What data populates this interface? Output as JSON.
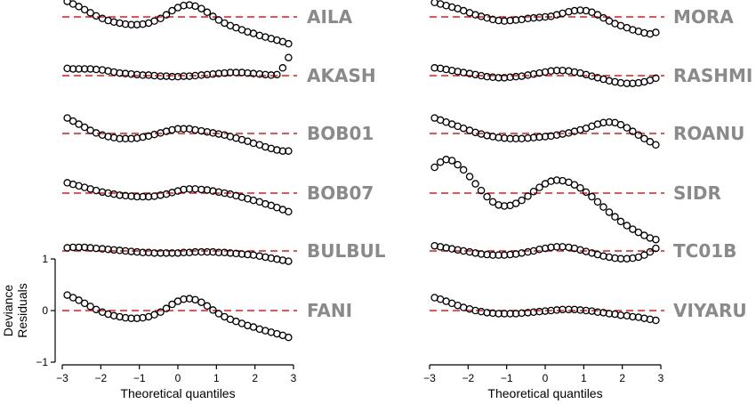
{
  "chart_data": {
    "type": "scatter",
    "description_of_layout": "two columns of stacked Q-Q style residual panels",
    "xlabel": "Theoretical quantiles",
    "ylabel": "Deviance\nResiduals",
    "ylabel_lines": [
      "Deviance",
      "Residuals"
    ],
    "xlim": [
      -3,
      3
    ],
    "xticks": [
      -3,
      -2,
      -1,
      0,
      1,
      2,
      3
    ],
    "xtick_labels": [
      "−3",
      "−2",
      "−1",
      "0",
      "1",
      "2",
      "3"
    ],
    "ylim": [
      -1,
      1
    ],
    "yticks": [
      1,
      0,
      -1
    ],
    "ytick_labels": [
      "1",
      "0",
      "−1"
    ],
    "reference_line_color": "#e31a1c",
    "marker": "open circle",
    "label_color": "#8a8a8a",
    "x": [
      -2.87,
      -2.72,
      -2.57,
      -2.42,
      -2.27,
      -2.12,
      -1.96,
      -1.81,
      -1.66,
      -1.51,
      -1.36,
      -1.21,
      -1.06,
      -0.91,
      -0.76,
      -0.61,
      -0.45,
      -0.3,
      -0.15,
      0.0,
      0.15,
      0.3,
      0.45,
      0.61,
      0.76,
      0.91,
      1.06,
      1.21,
      1.36,
      1.51,
      1.66,
      1.81,
      1.96,
      2.12,
      2.27,
      2.42,
      2.57,
      2.72,
      2.87
    ],
    "panels": [
      {
        "name": "AILA",
        "column": 0,
        "row": 0,
        "values": [
          0.3,
          0.25,
          0.2,
          0.14,
          0.08,
          0.02,
          -0.03,
          -0.07,
          -0.1,
          -0.12,
          -0.14,
          -0.15,
          -0.15,
          -0.14,
          -0.12,
          -0.08,
          -0.03,
          0.04,
          0.12,
          0.18,
          0.22,
          0.23,
          0.21,
          0.16,
          0.09,
          0.01,
          -0.06,
          -0.12,
          -0.17,
          -0.21,
          -0.25,
          -0.29,
          -0.32,
          -0.36,
          -0.39,
          -0.42,
          -0.45,
          -0.48,
          -0.52
        ]
      },
      {
        "name": "AKASH",
        "column": 0,
        "row": 1,
        "values": [
          0.14,
          0.13,
          0.13,
          0.13,
          0.13,
          0.12,
          0.11,
          0.09,
          0.07,
          0.05,
          0.04,
          0.03,
          0.02,
          0.01,
          0.01,
          0.0,
          -0.01,
          -0.01,
          -0.02,
          -0.02,
          -0.01,
          -0.01,
          0.0,
          0.01,
          0.02,
          0.03,
          0.04,
          0.05,
          0.06,
          0.06,
          0.06,
          0.05,
          0.04,
          0.03,
          0.02,
          0.01,
          0.02,
          0.15,
          0.35
        ]
      },
      {
        "name": "BOB01",
        "column": 0,
        "row": 2,
        "values": [
          0.3,
          0.24,
          0.18,
          0.12,
          0.06,
          0.01,
          -0.03,
          -0.06,
          -0.08,
          -0.1,
          -0.1,
          -0.1,
          -0.09,
          -0.07,
          -0.05,
          -0.02,
          0.01,
          0.04,
          0.07,
          0.09,
          0.09,
          0.09,
          0.07,
          0.05,
          0.03,
          0.01,
          -0.01,
          -0.03,
          -0.06,
          -0.09,
          -0.12,
          -0.15,
          -0.19,
          -0.22,
          -0.26,
          -0.29,
          -0.32,
          -0.34,
          -0.34
        ]
      },
      {
        "name": "BOB07",
        "column": 0,
        "row": 3,
        "values": [
          0.2,
          0.17,
          0.14,
          0.11,
          0.08,
          0.05,
          0.02,
          0.0,
          -0.02,
          -0.04,
          -0.05,
          -0.06,
          -0.07,
          -0.07,
          -0.07,
          -0.06,
          -0.04,
          -0.02,
          0.01,
          0.04,
          0.07,
          0.08,
          0.08,
          0.07,
          0.06,
          0.04,
          0.02,
          0.0,
          -0.02,
          -0.05,
          -0.08,
          -0.11,
          -0.14,
          -0.17,
          -0.21,
          -0.24,
          -0.28,
          -0.32,
          -0.36
        ]
      },
      {
        "name": "BULBUL",
        "column": 0,
        "row": 4,
        "values": [
          0.06,
          0.07,
          0.07,
          0.07,
          0.06,
          0.05,
          0.04,
          0.03,
          0.02,
          0.01,
          0.0,
          -0.01,
          -0.02,
          -0.03,
          -0.03,
          -0.04,
          -0.04,
          -0.04,
          -0.04,
          -0.04,
          -0.03,
          -0.03,
          -0.02,
          -0.02,
          -0.02,
          -0.02,
          -0.03,
          -0.03,
          -0.04,
          -0.05,
          -0.06,
          -0.07,
          -0.08,
          -0.1,
          -0.12,
          -0.14,
          -0.16,
          -0.18,
          -0.2
        ]
      },
      {
        "name": "FANI",
        "column": 0,
        "row": 5,
        "values": [
          0.3,
          0.25,
          0.2,
          0.14,
          0.08,
          0.02,
          -0.03,
          -0.07,
          -0.1,
          -0.12,
          -0.14,
          -0.15,
          -0.15,
          -0.14,
          -0.12,
          -0.08,
          -0.03,
          0.04,
          0.12,
          0.18,
          0.22,
          0.23,
          0.21,
          0.16,
          0.09,
          0.01,
          -0.06,
          -0.12,
          -0.17,
          -0.21,
          -0.25,
          -0.29,
          -0.32,
          -0.36,
          -0.39,
          -0.42,
          -0.45,
          -0.48,
          -0.52
        ]
      },
      {
        "name": "MORA",
        "column": 1,
        "row": 0,
        "values": [
          0.28,
          0.25,
          0.22,
          0.19,
          0.16,
          0.12,
          0.08,
          0.04,
          0.01,
          -0.02,
          -0.05,
          -0.07,
          -0.08,
          -0.07,
          -0.06,
          -0.05,
          -0.03,
          -0.02,
          -0.01,
          0.0,
          0.01,
          0.04,
          0.07,
          0.1,
          0.12,
          0.13,
          0.12,
          0.09,
          0.04,
          -0.02,
          -0.08,
          -0.13,
          -0.17,
          -0.21,
          -0.25,
          -0.28,
          -0.31,
          -0.33,
          -0.3
        ]
      },
      {
        "name": "RASHMI",
        "column": 1,
        "row": 1,
        "values": [
          0.15,
          0.14,
          0.12,
          0.1,
          0.08,
          0.06,
          0.04,
          0.02,
          0.0,
          -0.02,
          -0.03,
          -0.04,
          -0.04,
          -0.03,
          -0.02,
          -0.01,
          0.01,
          0.03,
          0.05,
          0.07,
          0.09,
          0.1,
          0.1,
          0.09,
          0.07,
          0.05,
          0.02,
          -0.01,
          -0.04,
          -0.07,
          -0.1,
          -0.12,
          -0.14,
          -0.15,
          -0.15,
          -0.14,
          -0.12,
          -0.09,
          -0.05
        ]
      },
      {
        "name": "ROANU",
        "column": 1,
        "row": 2,
        "values": [
          0.3,
          0.26,
          0.22,
          0.18,
          0.14,
          0.1,
          0.06,
          0.02,
          -0.01,
          -0.04,
          -0.06,
          -0.08,
          -0.09,
          -0.1,
          -0.1,
          -0.1,
          -0.09,
          -0.08,
          -0.07,
          -0.06,
          -0.05,
          -0.03,
          -0.01,
          0.01,
          0.04,
          0.07,
          0.1,
          0.14,
          0.18,
          0.21,
          0.22,
          0.21,
          0.17,
          0.11,
          0.04,
          -0.03,
          -0.1,
          -0.16,
          -0.22
        ]
      },
      {
        "name": "SIDR",
        "column": 1,
        "row": 3,
        "values": [
          0.5,
          0.6,
          0.65,
          0.63,
          0.55,
          0.45,
          0.32,
          0.18,
          0.05,
          -0.07,
          -0.17,
          -0.23,
          -0.25,
          -0.24,
          -0.2,
          -0.14,
          -0.06,
          0.03,
          0.11,
          0.18,
          0.23,
          0.25,
          0.24,
          0.21,
          0.16,
          0.1,
          0.02,
          -0.07,
          -0.17,
          -0.27,
          -0.37,
          -0.46,
          -0.55,
          -0.63,
          -0.7,
          -0.76,
          -0.82,
          -0.87,
          -0.9
        ]
      },
      {
        "name": "TC01B",
        "column": 1,
        "row": 4,
        "values": [
          0.1,
          0.08,
          0.06,
          0.04,
          0.02,
          0.0,
          -0.02,
          -0.04,
          -0.06,
          -0.07,
          -0.08,
          -0.08,
          -0.08,
          -0.07,
          -0.06,
          -0.04,
          -0.02,
          0.0,
          0.03,
          0.05,
          0.07,
          0.08,
          0.08,
          0.07,
          0.05,
          0.02,
          -0.01,
          -0.04,
          -0.07,
          -0.1,
          -0.12,
          -0.14,
          -0.15,
          -0.15,
          -0.14,
          -0.12,
          -0.08,
          -0.02,
          0.05
        ]
      },
      {
        "name": "VIYARU",
        "column": 1,
        "row": 5,
        "values": [
          0.25,
          0.22,
          0.18,
          0.14,
          0.1,
          0.06,
          0.03,
          0.0,
          -0.02,
          -0.04,
          -0.05,
          -0.06,
          -0.06,
          -0.06,
          -0.06,
          -0.05,
          -0.04,
          -0.03,
          -0.02,
          -0.01,
          0.0,
          0.01,
          0.02,
          0.02,
          0.02,
          0.01,
          0.0,
          -0.01,
          -0.03,
          -0.04,
          -0.06,
          -0.07,
          -0.09,
          -0.1,
          -0.12,
          -0.13,
          -0.15,
          -0.17,
          -0.19
        ]
      }
    ]
  }
}
